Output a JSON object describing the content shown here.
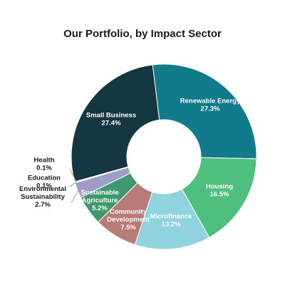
{
  "chart_data": {
    "type": "pie",
    "title": "Our Portfolio, by Impact Sector",
    "slices": [
      {
        "name": "Renewable Energy",
        "value": 27.3,
        "label": "27.3%",
        "color": "#117a8b",
        "label_pos": "inside"
      },
      {
        "name": "Housing",
        "value": 16.5,
        "label": "16.5%",
        "color": "#4fbf7e",
        "label_pos": "inside"
      },
      {
        "name": "Microfinance",
        "value": 13.2,
        "label": "13.2%",
        "color": "#8fd3de",
        "label_pos": "inside"
      },
      {
        "name": "Community Development",
        "value": 7.5,
        "label": "7.5%",
        "color": "#b97a78",
        "label_pos": "inside"
      },
      {
        "name": "Sustainable Agriculture",
        "value": 5.2,
        "label": "5.2%",
        "color": "#3f9870",
        "label_pos": "inside"
      },
      {
        "name": "Environmental Sustainability",
        "value": 2.7,
        "label": "2.7%",
        "color": "#9f9cc7",
        "label_pos": "outside"
      },
      {
        "name": "Education",
        "value": 0.1,
        "label": "0.1%",
        "color": "#6aa0c8",
        "label_pos": "outside"
      },
      {
        "name": "Health",
        "value": 0.1,
        "label": "0.1%",
        "color": "#d8a35a",
        "label_pos": "outside"
      },
      {
        "name": "Small Business",
        "value": 27.4,
        "label": "27.4%",
        "color": "#143741",
        "label_pos": "inside"
      }
    ]
  }
}
